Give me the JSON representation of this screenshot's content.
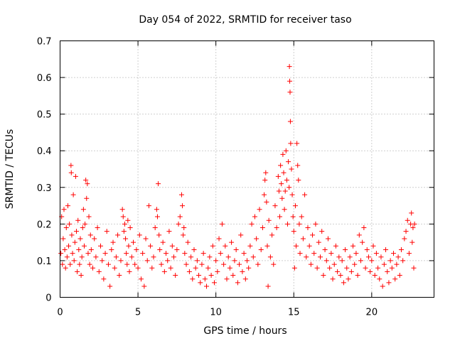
{
  "chart_data": {
    "type": "scatter",
    "title": "Day 054 of 2022, SRMTID for receiver taso",
    "xlabel": "GPS time / hours",
    "ylabel": "SRMTID / TECUs",
    "xlim": [
      0,
      24
    ],
    "ylim": [
      0,
      0.7
    ],
    "xticks": [
      0,
      5,
      10,
      15,
      20
    ],
    "xtick_labels": [
      "0",
      "5",
      "10",
      "15",
      "20"
    ],
    "yticks": [
      0,
      0.1,
      0.2,
      0.3,
      0.4,
      0.5,
      0.6,
      0.7
    ],
    "ytick_labels": [
      "0",
      "0.1",
      "0.2",
      "0.3",
      "0.4",
      "0.5",
      "0.6",
      "0.7"
    ],
    "grid": true,
    "marker": "+",
    "color": "#ff0000",
    "series": [
      {
        "name": "SRMTID",
        "points": [
          [
            0.05,
            0.12
          ],
          [
            0.1,
            0.22
          ],
          [
            0.15,
            0.09
          ],
          [
            0.2,
            0.16
          ],
          [
            0.25,
            0.24
          ],
          [
            0.3,
            0.13
          ],
          [
            0.35,
            0.08
          ],
          [
            0.4,
            0.19
          ],
          [
            0.45,
            0.11
          ],
          [
            0.5,
            0.25
          ],
          [
            0.55,
            0.14
          ],
          [
            0.6,
            0.2
          ],
          [
            0.65,
            0.09
          ],
          [
            0.7,
            0.36
          ],
          [
            0.72,
            0.34
          ],
          [
            0.75,
            0.17
          ],
          [
            0.8,
            0.12
          ],
          [
            0.85,
            0.28
          ],
          [
            0.9,
            0.1
          ],
          [
            0.95,
            0.15
          ],
          [
            1.0,
            0.33
          ],
          [
            1.05,
            0.18
          ],
          [
            1.1,
            0.07
          ],
          [
            1.15,
            0.21
          ],
          [
            1.2,
            0.13
          ],
          [
            1.25,
            0.09
          ],
          [
            1.3,
            0.16
          ],
          [
            1.35,
            0.06
          ],
          [
            1.4,
            0.11
          ],
          [
            1.45,
            0.19
          ],
          [
            1.5,
            0.24
          ],
          [
            1.55,
            0.14
          ],
          [
            1.6,
            0.2
          ],
          [
            1.65,
            0.32
          ],
          [
            1.7,
            0.27
          ],
          [
            1.75,
            0.31
          ],
          [
            1.8,
            0.12
          ],
          [
            1.85,
            0.22
          ],
          [
            1.9,
            0.09
          ],
          [
            1.95,
            0.17
          ],
          [
            2.0,
            0.13
          ],
          [
            2.1,
            0.08
          ],
          [
            2.2,
            0.16
          ],
          [
            2.3,
            0.11
          ],
          [
            2.4,
            0.19
          ],
          [
            2.5,
            0.07
          ],
          [
            2.6,
            0.14
          ],
          [
            2.7,
            0.1
          ],
          [
            2.8,
            0.05
          ],
          [
            2.9,
            0.12
          ],
          [
            3.0,
            0.18
          ],
          [
            3.1,
            0.09
          ],
          [
            3.2,
            0.03
          ],
          [
            3.3,
            0.13
          ],
          [
            3.4,
            0.15
          ],
          [
            3.5,
            0.08
          ],
          [
            3.6,
            0.11
          ],
          [
            3.7,
            0.17
          ],
          [
            3.8,
            0.06
          ],
          [
            3.9,
            0.1
          ],
          [
            4.0,
            0.24
          ],
          [
            4.05,
            0.22
          ],
          [
            4.1,
            0.18
          ],
          [
            4.15,
            0.2
          ],
          [
            4.2,
            0.16
          ],
          [
            4.25,
            0.12
          ],
          [
            4.3,
            0.09
          ],
          [
            4.35,
            0.21
          ],
          [
            4.4,
            0.14
          ],
          [
            4.45,
            0.07
          ],
          [
            4.5,
            0.19
          ],
          [
            4.6,
            0.11
          ],
          [
            4.7,
            0.15
          ],
          [
            4.8,
            0.09
          ],
          [
            4.9,
            0.13
          ],
          [
            5.0,
            0.08
          ],
          [
            5.1,
            0.17
          ],
          [
            5.2,
            0.05
          ],
          [
            5.3,
            0.12
          ],
          [
            5.4,
            0.03
          ],
          [
            5.5,
            0.16
          ],
          [
            5.6,
            0.1
          ],
          [
            5.7,
            0.25
          ],
          [
            5.8,
            0.14
          ],
          [
            5.9,
            0.08
          ],
          [
            6.0,
            0.11
          ],
          [
            6.1,
            0.19
          ],
          [
            6.2,
            0.24
          ],
          [
            6.25,
            0.22
          ],
          [
            6.3,
            0.31
          ],
          [
            6.35,
            0.17
          ],
          [
            6.4,
            0.13
          ],
          [
            6.5,
            0.09
          ],
          [
            6.6,
            0.15
          ],
          [
            6.7,
            0.07
          ],
          [
            6.8,
            0.12
          ],
          [
            6.9,
            0.1
          ],
          [
            7.0,
            0.18
          ],
          [
            7.1,
            0.08
          ],
          [
            7.2,
            0.14
          ],
          [
            7.3,
            0.11
          ],
          [
            7.4,
            0.06
          ],
          [
            7.5,
            0.13
          ],
          [
            7.6,
            0.2
          ],
          [
            7.7,
            0.22
          ],
          [
            7.8,
            0.28
          ],
          [
            7.85,
            0.25
          ],
          [
            7.9,
            0.17
          ],
          [
            7.95,
            0.19
          ],
          [
            8.0,
            0.12
          ],
          [
            8.1,
            0.09
          ],
          [
            8.2,
            0.15
          ],
          [
            8.3,
            0.07
          ],
          [
            8.4,
            0.11
          ],
          [
            8.5,
            0.05
          ],
          [
            8.6,
            0.13
          ],
          [
            8.7,
            0.08
          ],
          [
            8.8,
            0.1
          ],
          [
            8.9,
            0.06
          ],
          [
            9.0,
            0.04
          ],
          [
            9.1,
            0.09
          ],
          [
            9.2,
            0.12
          ],
          [
            9.3,
            0.05
          ],
          [
            9.4,
            0.03
          ],
          [
            9.5,
            0.08
          ],
          [
            9.6,
            0.11
          ],
          [
            9.7,
            0.06
          ],
          [
            9.8,
            0.14
          ],
          [
            9.9,
            0.04
          ],
          [
            10.0,
            0.1
          ],
          [
            10.1,
            0.07
          ],
          [
            10.2,
            0.16
          ],
          [
            10.3,
            0.12
          ],
          [
            10.4,
            0.2
          ],
          [
            10.5,
            0.09
          ],
          [
            10.6,
            0.14
          ],
          [
            10.7,
            0.05
          ],
          [
            10.8,
            0.11
          ],
          [
            10.9,
            0.08
          ],
          [
            11.0,
            0.15
          ],
          [
            11.1,
            0.06
          ],
          [
            11.2,
            0.1
          ],
          [
            11.3,
            0.13
          ],
          [
            11.4,
            0.04
          ],
          [
            11.5,
            0.09
          ],
          [
            11.6,
            0.17
          ],
          [
            11.7,
            0.07
          ],
          [
            11.8,
            0.12
          ],
          [
            11.9,
            0.05
          ],
          [
            12.0,
            0.1
          ],
          [
            12.1,
            0.08
          ],
          [
            12.2,
            0.14
          ],
          [
            12.3,
            0.2
          ],
          [
            12.4,
            0.11
          ],
          [
            12.5,
            0.22
          ],
          [
            12.6,
            0.16
          ],
          [
            12.7,
            0.09
          ],
          [
            12.8,
            0.24
          ],
          [
            12.9,
            0.13
          ],
          [
            13.0,
            0.19
          ],
          [
            13.1,
            0.28
          ],
          [
            13.15,
            0.32
          ],
          [
            13.2,
            0.34
          ],
          [
            13.25,
            0.26
          ],
          [
            13.3,
            0.14
          ],
          [
            13.35,
            0.03
          ],
          [
            13.4,
            0.21
          ],
          [
            13.5,
            0.11
          ],
          [
            13.6,
            0.17
          ],
          [
            13.7,
            0.09
          ],
          [
            13.8,
            0.25
          ],
          [
            13.9,
            0.19
          ],
          [
            14.0,
            0.33
          ],
          [
            14.05,
            0.29
          ],
          [
            14.1,
            0.22
          ],
          [
            14.15,
            0.36
          ],
          [
            14.2,
            0.31
          ],
          [
            14.25,
            0.27
          ],
          [
            14.3,
            0.39
          ],
          [
            14.35,
            0.34
          ],
          [
            14.4,
            0.24
          ],
          [
            14.45,
            0.29
          ],
          [
            14.5,
            0.4
          ],
          [
            14.55,
            0.32
          ],
          [
            14.6,
            0.2
          ],
          [
            14.65,
            0.37
          ],
          [
            14.7,
            0.3
          ],
          [
            14.72,
            0.63
          ],
          [
            14.74,
            0.59
          ],
          [
            14.76,
            0.56
          ],
          [
            14.78,
            0.48
          ],
          [
            14.8,
            0.42
          ],
          [
            14.85,
            0.35
          ],
          [
            14.9,
            0.28
          ],
          [
            14.95,
            0.22
          ],
          [
            15.0,
            0.18
          ],
          [
            15.05,
            0.08
          ],
          [
            15.1,
            0.25
          ],
          [
            15.15,
            0.14
          ],
          [
            15.2,
            0.42
          ],
          [
            15.25,
            0.36
          ],
          [
            15.3,
            0.32
          ],
          [
            15.35,
            0.2
          ],
          [
            15.4,
            0.12
          ],
          [
            15.5,
            0.22
          ],
          [
            15.6,
            0.16
          ],
          [
            15.7,
            0.28
          ],
          [
            15.8,
            0.11
          ],
          [
            15.9,
            0.19
          ],
          [
            16.0,
            0.14
          ],
          [
            16.1,
            0.09
          ],
          [
            16.2,
            0.17
          ],
          [
            16.3,
            0.12
          ],
          [
            16.4,
            0.2
          ],
          [
            16.5,
            0.08
          ],
          [
            16.6,
            0.15
          ],
          [
            16.7,
            0.11
          ],
          [
            16.8,
            0.18
          ],
          [
            16.9,
            0.06
          ],
          [
            17.0,
            0.13
          ],
          [
            17.1,
            0.1
          ],
          [
            17.2,
            0.16
          ],
          [
            17.3,
            0.08
          ],
          [
            17.4,
            0.12
          ],
          [
            17.5,
            0.05
          ],
          [
            17.6,
            0.09
          ],
          [
            17.7,
            0.14
          ],
          [
            17.8,
            0.07
          ],
          [
            17.9,
            0.11
          ],
          [
            18.0,
            0.06
          ],
          [
            18.1,
            0.1
          ],
          [
            18.2,
            0.04
          ],
          [
            18.3,
            0.13
          ],
          [
            18.4,
            0.08
          ],
          [
            18.5,
            0.05
          ],
          [
            18.6,
            0.11
          ],
          [
            18.7,
            0.07
          ],
          [
            18.8,
            0.14
          ],
          [
            18.9,
            0.09
          ],
          [
            19.0,
            0.12
          ],
          [
            19.1,
            0.06
          ],
          [
            19.2,
            0.17
          ],
          [
            19.3,
            0.1
          ],
          [
            19.4,
            0.15
          ],
          [
            19.5,
            0.19
          ],
          [
            19.6,
            0.08
          ],
          [
            19.7,
            0.13
          ],
          [
            19.8,
            0.11
          ],
          [
            19.9,
            0.07
          ],
          [
            20.0,
            0.1
          ],
          [
            20.1,
            0.14
          ],
          [
            20.2,
            0.06
          ],
          [
            20.3,
            0.12
          ],
          [
            20.4,
            0.08
          ],
          [
            20.5,
            0.05
          ],
          [
            20.6,
            0.11
          ],
          [
            20.7,
            0.03
          ],
          [
            20.8,
            0.09
          ],
          [
            20.9,
            0.13
          ],
          [
            21.0,
            0.07
          ],
          [
            21.1,
            0.04
          ],
          [
            21.2,
            0.1
          ],
          [
            21.3,
            0.08
          ],
          [
            21.4,
            0.12
          ],
          [
            21.5,
            0.05
          ],
          [
            21.6,
            0.09
          ],
          [
            21.7,
            0.11
          ],
          [
            21.8,
            0.06
          ],
          [
            21.9,
            0.13
          ],
          [
            22.0,
            0.1
          ],
          [
            22.1,
            0.16
          ],
          [
            22.2,
            0.18
          ],
          [
            22.3,
            0.21
          ],
          [
            22.4,
            0.12
          ],
          [
            22.5,
            0.2
          ],
          [
            22.55,
            0.23
          ],
          [
            22.6,
            0.15
          ],
          [
            22.65,
            0.19
          ],
          [
            22.7,
            0.08
          ],
          [
            22.75,
            0.2
          ]
        ]
      }
    ]
  }
}
